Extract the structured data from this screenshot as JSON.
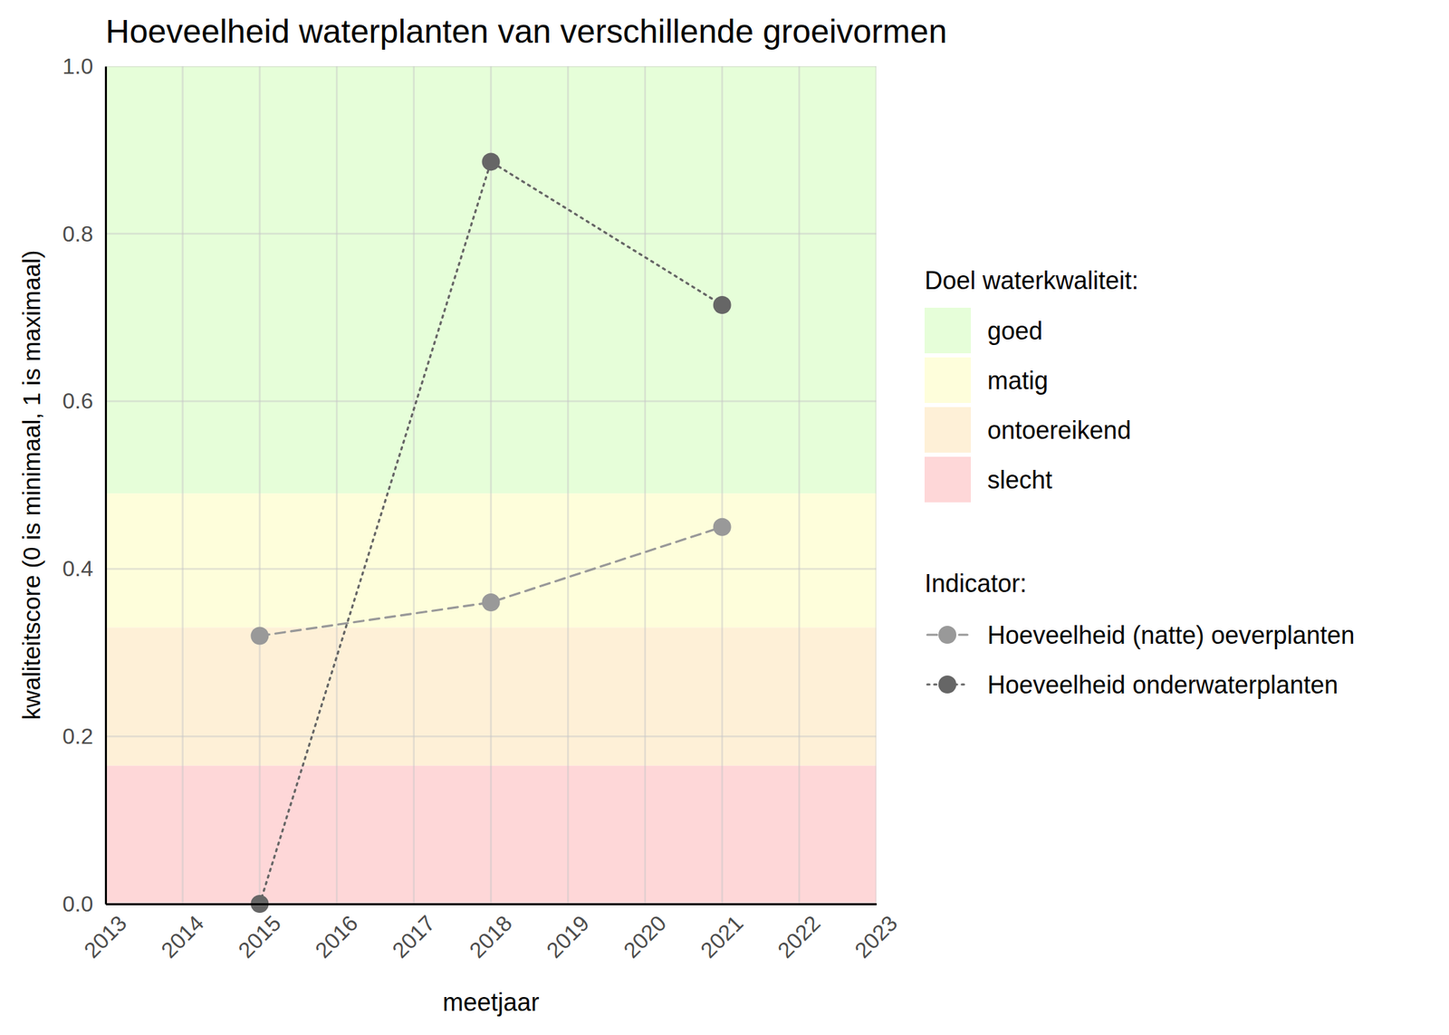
{
  "chart_data": {
    "type": "line",
    "title": "Hoeveelheid waterplanten van verschillende groeivormen",
    "x_label": "meetjaar",
    "y_label": "kwaliteitscore (0 is minimaal, 1 is maximaal)",
    "x": [
      2015,
      2018,
      2021
    ],
    "series": [
      {
        "name": "Hoeveelheid (natte) oeverplanten",
        "color": "#999999",
        "values": [
          0.32,
          0.36,
          0.45
        ],
        "marker": "circle",
        "line_style": "dashed"
      },
      {
        "name": "Hoeveelheid onderwaterplanten",
        "color": "#666666",
        "values": [
          0,
          0.886,
          0.715
        ],
        "marker": "circle",
        "line_style": "dotted"
      }
    ],
    "xlim": [
      2013,
      2023
    ],
    "xticks": [
      2013,
      2014,
      2015,
      2016,
      2017,
      2018,
      2019,
      2020,
      2021,
      2022,
      2023
    ],
    "ylim": [
      0,
      1
    ],
    "yticks": [
      {
        "value": 0,
        "label": "0.0"
      },
      0.2,
      0.4,
      0.6,
      0.8,
      {
        "value": 1,
        "label": "1.0"
      }
    ],
    "grid": true,
    "legend": "right",
    "legend_title": "Indicator:",
    "bands": {
      "title": "Doel waterkwaliteit:",
      "items": [
        {
          "name": "goed",
          "color": "#e6fed9",
          "from": 0.49,
          "to": 1
        },
        {
          "name": "matig",
          "color": "#fefedb",
          "from": 0.33,
          "to": 0.49
        },
        {
          "name": "ontoereikend",
          "color": "#fef0d7",
          "from": 0.165,
          "to": 0.33
        },
        {
          "name": "slecht",
          "color": "#fed7d8",
          "from": 0,
          "to": 0.165
        }
      ]
    }
  }
}
